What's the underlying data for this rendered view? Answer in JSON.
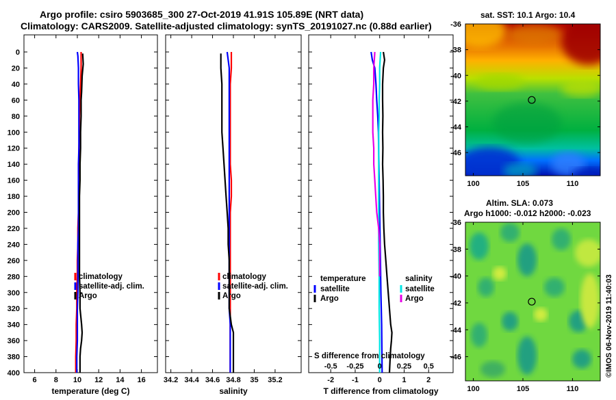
{
  "title": {
    "line1": "Argo profile: csiro 5903685_300 27-Oct-2019 41.91S 105.89E (NRT data)",
    "line2": "Climatology: CARS2009. Satellite-adjusted climatology: synTS_20191027.nc (0.88d earlier)"
  },
  "timestamp": "©IMOS 06-Nov-2019 11:40:03",
  "colors": {
    "climatology": "#ff0000",
    "satellite": "#0000ff",
    "argo": "#000000",
    "s_satellite": "#00e5e5",
    "s_argo": "#e600e6"
  },
  "chart_data": [
    {
      "id": "temperature",
      "type": "line",
      "xlabel": "temperature (deg C)",
      "ylabel": "",
      "xlim": [
        5,
        17.5
      ],
      "ylim": [
        400,
        0
      ],
      "xticks": [
        "6",
        "8",
        "10",
        "12",
        "14",
        "16"
      ],
      "xtick_values": [
        6,
        8,
        10,
        12,
        14,
        16
      ],
      "yticks": [
        "0",
        "20",
        "40",
        "60",
        "80",
        "100",
        "120",
        "140",
        "160",
        "180",
        "200",
        "220",
        "240",
        "260",
        "280",
        "300",
        "320",
        "340",
        "360",
        "380",
        "400"
      ],
      "legend": {
        "position": "lower-right",
        "entries": [
          "climatology",
          "satellite-adj. clim.",
          "Argo"
        ]
      },
      "series": [
        {
          "name": "climatology",
          "color": "#ff0000",
          "depth": [
            0,
            20,
            40,
            60,
            80,
            100,
            120,
            140,
            160,
            180,
            200,
            220,
            240,
            260,
            280,
            300,
            320,
            340,
            360,
            380,
            400
          ],
          "values": [
            10.35,
            10.35,
            10.3,
            10.25,
            10.2,
            10.2,
            10.15,
            10.15,
            10.1,
            10.1,
            10.1,
            10.05,
            10.05,
            10.0,
            10.0,
            9.95,
            9.95,
            9.9,
            9.9,
            9.85,
            9.85
          ]
        },
        {
          "name": "satellite-adj. clim.",
          "color": "#0000ff",
          "depth": [
            0,
            5,
            20,
            40,
            60,
            80,
            100,
            120,
            140,
            160,
            180,
            200,
            220,
            240,
            260,
            280,
            300,
            320,
            340,
            360,
            380,
            400
          ],
          "values": [
            10.0,
            10.05,
            10.1,
            10.1,
            10.15,
            10.15,
            10.15,
            10.15,
            10.1,
            10.1,
            10.1,
            10.1,
            10.1,
            10.05,
            10.05,
            10.05,
            10.05,
            10.0,
            10.0,
            10.0,
            9.95,
            9.95
          ]
        },
        {
          "name": "Argo",
          "color": "#000000",
          "depth": [
            2,
            15,
            30,
            50,
            60,
            80,
            100,
            120,
            140,
            160,
            180,
            200,
            220,
            240,
            260,
            280,
            300,
            320,
            340,
            350,
            360,
            370,
            380,
            400
          ],
          "values": [
            10.5,
            10.55,
            10.45,
            10.4,
            10.35,
            10.35,
            10.3,
            10.3,
            10.25,
            10.25,
            10.2,
            10.2,
            10.2,
            10.2,
            10.2,
            10.2,
            10.25,
            10.25,
            10.4,
            10.45,
            10.4,
            10.3,
            10.25,
            10.25
          ]
        }
      ]
    },
    {
      "id": "salinity",
      "type": "line",
      "xlabel": "salinity",
      "ylabel": "",
      "xlim": [
        34.15,
        35.45
      ],
      "xticks": [
        "34.2",
        "34.4",
        "34.6",
        "34.8",
        "35",
        "35.2"
      ],
      "xtick_values": [
        34.2,
        34.4,
        34.6,
        34.8,
        35.0,
        35.2
      ],
      "ylim": [
        400,
        0
      ],
      "legend": {
        "position": "lower-right",
        "entries": [
          "climatology",
          "satellite-adj. clim.",
          "Argo"
        ]
      },
      "series": [
        {
          "name": "climatology",
          "color": "#ff0000",
          "depth": [
            0,
            20,
            40,
            60,
            80,
            100,
            120,
            140,
            160,
            180,
            200,
            220,
            240,
            260,
            280,
            300,
            320,
            340,
            360,
            380,
            400
          ],
          "values": [
            34.78,
            34.78,
            34.77,
            34.77,
            34.77,
            34.77,
            34.77,
            34.77,
            34.78,
            34.78,
            34.77,
            34.77,
            34.77,
            34.77,
            34.77,
            34.77,
            34.77,
            34.77,
            34.77,
            34.77,
            34.77
          ]
        },
        {
          "name": "satellite-adj. clim.",
          "color": "#0000ff",
          "depth": [
            0,
            10,
            20,
            40,
            60,
            80,
            100,
            120,
            140,
            160,
            180,
            200,
            220,
            240,
            260,
            280,
            300,
            320,
            340,
            360,
            380,
            400
          ],
          "values": [
            34.74,
            34.75,
            34.76,
            34.76,
            34.76,
            34.76,
            34.76,
            34.76,
            34.76,
            34.76,
            34.76,
            34.76,
            34.76,
            34.76,
            34.76,
            34.76,
            34.76,
            34.76,
            34.77,
            34.77,
            34.77,
            34.77
          ]
        },
        {
          "name": "Argo",
          "color": "#000000",
          "depth": [
            2,
            20,
            40,
            60,
            80,
            100,
            120,
            140,
            160,
            180,
            200,
            220,
            240,
            260,
            280,
            300,
            320,
            340,
            350,
            360,
            380,
            400
          ],
          "values": [
            34.68,
            34.68,
            34.69,
            34.69,
            34.69,
            34.69,
            34.7,
            34.71,
            34.72,
            34.73,
            34.74,
            34.75,
            34.75,
            34.76,
            34.76,
            34.76,
            34.76,
            34.78,
            34.8,
            34.8,
            34.8,
            34.8
          ]
        }
      ]
    },
    {
      "id": "difference",
      "type": "line",
      "xlabel": "T difference from climatology",
      "xlabel_top": "S difference from climatology",
      "xlim": [
        -2.9,
        3.0
      ],
      "xticks": [
        "-2",
        "-1",
        "0",
        "1",
        "2"
      ],
      "xtick_values": [
        -2,
        -1,
        0,
        1,
        2
      ],
      "xticks_s": [
        "-0.5",
        "-0.25",
        "0",
        "0.25",
        "0.5"
      ],
      "xtick_s_values": [
        -0.5,
        -0.25,
        0,
        0.25,
        0.5
      ],
      "ylim": [
        400,
        0
      ],
      "legend_temperature": {
        "title": "temperature",
        "entries": [
          "satellite",
          "Argo"
        ]
      },
      "legend_salinity": {
        "title": "salinity",
        "entries": [
          "satellite",
          "Argo"
        ]
      },
      "series": [
        {
          "name": "T satellite",
          "color": "#0000ff",
          "depth": [
            0,
            10,
            20,
            40,
            60,
            80,
            100,
            140,
            200,
            260,
            300,
            340,
            400
          ],
          "values": [
            -0.35,
            -0.3,
            -0.2,
            -0.15,
            -0.12,
            -0.08,
            -0.05,
            -0.03,
            0.0,
            0.03,
            0.05,
            0.08,
            0.1
          ]
        },
        {
          "name": "T Argo",
          "color": "#000000",
          "depth": [
            0,
            10,
            20,
            40,
            60,
            80,
            100,
            120,
            140,
            160,
            180,
            200,
            220,
            240,
            260,
            280,
            300,
            320,
            340,
            350,
            360,
            370,
            380,
            400
          ],
          "values": [
            0.15,
            0.2,
            0.15,
            0.12,
            0.12,
            0.13,
            0.12,
            0.13,
            0.12,
            0.14,
            0.15,
            0.15,
            0.17,
            0.2,
            0.25,
            0.3,
            0.35,
            0.4,
            0.45,
            0.5,
            0.48,
            0.45,
            0.43,
            0.4
          ]
        },
        {
          "name": "S satellite",
          "color": "#00e5e5",
          "depth": [
            0,
            20,
            40,
            60,
            80,
            100,
            120,
            140,
            160,
            180,
            200,
            240,
            280,
            320,
            360,
            400
          ],
          "values": [
            0.01,
            0.0,
            0.0,
            -0.005,
            -0.005,
            -0.01,
            -0.01,
            -0.01,
            -0.01,
            -0.01,
            -0.01,
            -0.01,
            -0.005,
            -0.005,
            0.0,
            0.0
          ]
        },
        {
          "name": "S Argo",
          "color": "#e600e6",
          "depth": [
            0,
            20,
            40,
            60,
            80,
            100,
            120,
            140,
            160,
            180,
            200,
            220,
            240,
            260,
            280
          ],
          "values": [
            -0.05,
            -0.06,
            -0.06,
            -0.07,
            -0.07,
            -0.07,
            -0.06,
            -0.06,
            -0.05,
            -0.04,
            -0.03,
            -0.01,
            0.0,
            0.0,
            0.0
          ]
        }
      ]
    },
    {
      "id": "sst_map",
      "type": "heatmap",
      "title": "sat. SST: 10.1 Argo: 10.4",
      "xlim": [
        99.2,
        112.8
      ],
      "ylim": [
        -47.8,
        -36
      ],
      "xticks": [
        "100",
        "105",
        "110"
      ],
      "xtick_values": [
        100,
        105,
        110
      ],
      "yticks": [
        "-36",
        "-38",
        "-40",
        "-42",
        "-44",
        "-46"
      ],
      "ytick_values": [
        -36,
        -38,
        -40,
        -42,
        -44,
        -46
      ],
      "marker": {
        "lon": 105.89,
        "lat": -41.91
      }
    },
    {
      "id": "sla_map",
      "type": "heatmap",
      "title": "Altim. SLA: 0.073",
      "subtitle": "Argo h1000: -0.012 h2000: -0.023",
      "xlim": [
        99.2,
        112.8
      ],
      "ylim": [
        -47.8,
        -36
      ],
      "xticks": [
        "100",
        "105",
        "110"
      ],
      "xtick_values": [
        100,
        105,
        110
      ],
      "yticks": [
        "-36",
        "-38",
        "-40",
        "-42",
        "-44",
        "-46"
      ],
      "ytick_values": [
        -36,
        -38,
        -40,
        -42,
        -44,
        -46
      ],
      "marker": {
        "lon": 105.89,
        "lat": -41.91
      }
    }
  ]
}
